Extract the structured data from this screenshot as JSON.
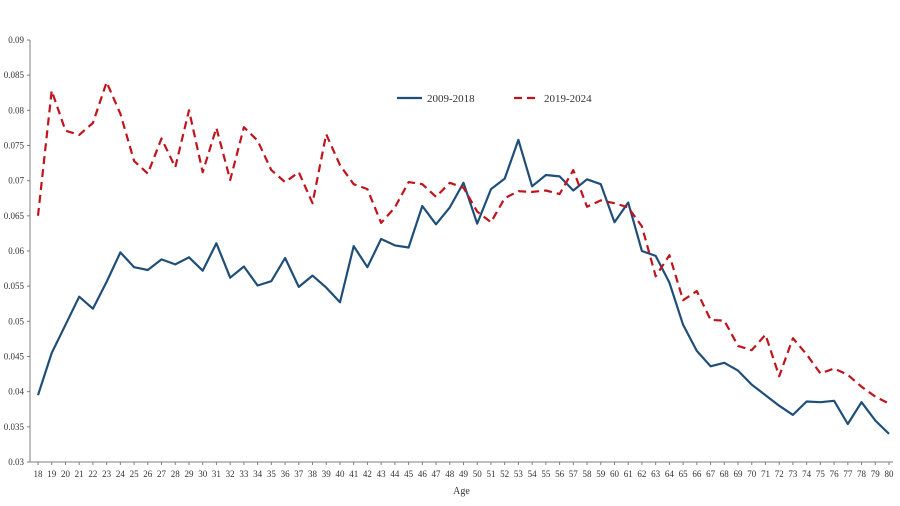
{
  "chart_data": {
    "type": "line",
    "title": "",
    "xlabel": "Age",
    "ylabel": "",
    "ylim": [
      0.03,
      0.09
    ],
    "yticks": [
      "0.03",
      "0.035",
      "0.04",
      "0.045",
      "0.05",
      "0.055",
      "0.06",
      "0.065",
      "0.07",
      "0.075",
      "0.08",
      "0.085",
      "0.09"
    ],
    "grid": false,
    "legend_position": "top-center",
    "x": [
      18,
      19,
      20,
      21,
      22,
      23,
      24,
      25,
      26,
      27,
      28,
      29,
      30,
      31,
      32,
      33,
      34,
      35,
      36,
      37,
      38,
      39,
      40,
      41,
      42,
      43,
      44,
      45,
      46,
      47,
      48,
      49,
      50,
      51,
      52,
      53,
      54,
      55,
      56,
      57,
      58,
      59,
      60,
      61,
      62,
      63,
      64,
      65,
      66,
      67,
      68,
      69,
      70,
      71,
      72,
      73,
      74,
      75,
      76,
      77,
      78,
      79,
      80
    ],
    "series": [
      {
        "name": "2009-2018",
        "color": "#1f4e79",
        "dash": "solid",
        "values": [
          0.0395,
          0.0455,
          0.0495,
          0.0535,
          0.0518,
          0.0556,
          0.0598,
          0.0577,
          0.0573,
          0.0588,
          0.0581,
          0.0591,
          0.0572,
          0.0611,
          0.0562,
          0.0578,
          0.0551,
          0.0557,
          0.059,
          0.0549,
          0.0565,
          0.0548,
          0.0527,
          0.0607,
          0.0577,
          0.0617,
          0.0608,
          0.0605,
          0.0664,
          0.0638,
          0.0662,
          0.0697,
          0.0639,
          0.0688,
          0.0703,
          0.0758,
          0.0692,
          0.0708,
          0.0706,
          0.0686,
          0.0702,
          0.0695,
          0.0641,
          0.0669,
          0.06,
          0.0593,
          0.0555,
          0.0495,
          0.0458,
          0.0436,
          0.0441,
          0.043,
          0.041,
          0.0395,
          0.038,
          0.0367,
          0.0386,
          0.0385,
          0.0387,
          0.0354,
          0.0385,
          0.0359,
          0.034
        ]
      },
      {
        "name": "2019-2024",
        "color": "#c0141c",
        "dash": "dashed",
        "values": [
          0.065,
          0.0828,
          0.0771,
          0.0765,
          0.0782,
          0.084,
          0.0795,
          0.0728,
          0.071,
          0.076,
          0.0719,
          0.08,
          0.0712,
          0.0775,
          0.0701,
          0.0776,
          0.0757,
          0.0715,
          0.0698,
          0.0712,
          0.0668,
          0.0766,
          0.0722,
          0.0695,
          0.0688,
          0.064,
          0.0662,
          0.0698,
          0.0695,
          0.0677,
          0.0697,
          0.069,
          0.0656,
          0.0641,
          0.0675,
          0.0685,
          0.0684,
          0.0686,
          0.0681,
          0.0715,
          0.0663,
          0.0672,
          0.0668,
          0.0662,
          0.0635,
          0.0564,
          0.0594,
          0.053,
          0.0543,
          0.0502,
          0.0501,
          0.0465,
          0.0459,
          0.0481,
          0.0422,
          0.0476,
          0.0453,
          0.0426,
          0.0433,
          0.0424,
          0.0407,
          0.0393,
          0.0383
        ]
      }
    ]
  }
}
